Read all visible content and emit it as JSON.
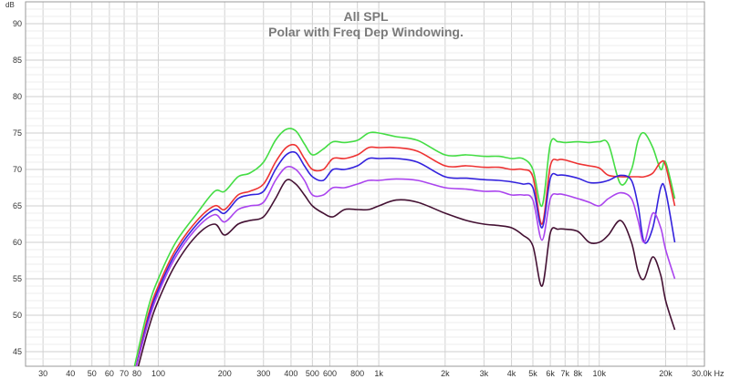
{
  "chart_data": {
    "type": "line",
    "title": "All SPL",
    "subtitle": "Polar with Freq Dep Windowing.",
    "ylabel": "dB",
    "xunit": "Hz",
    "xscale": "log",
    "xlim": [
      25,
      30000
    ],
    "ylim": [
      43,
      93
    ],
    "grid": true,
    "legend": "none",
    "x_ticks": [
      {
        "value": 30,
        "label": "30"
      },
      {
        "value": 40,
        "label": "40"
      },
      {
        "value": 50,
        "label": "50"
      },
      {
        "value": 60,
        "label": "60"
      },
      {
        "value": 70,
        "label": "70"
      },
      {
        "value": 80,
        "label": "80"
      },
      {
        "value": 100,
        "label": "100"
      },
      {
        "value": 200,
        "label": "200"
      },
      {
        "value": 300,
        "label": "300"
      },
      {
        "value": 400,
        "label": "400"
      },
      {
        "value": 500,
        "label": "500"
      },
      {
        "value": 600,
        "label": "600"
      },
      {
        "value": 800,
        "label": "800"
      },
      {
        "value": 1000,
        "label": "1k"
      },
      {
        "value": 2000,
        "label": "2k"
      },
      {
        "value": 3000,
        "label": "3k"
      },
      {
        "value": 4000,
        "label": "4k"
      },
      {
        "value": 5000,
        "label": "5k"
      },
      {
        "value": 6000,
        "label": "6k"
      },
      {
        "value": 7000,
        "label": "7k"
      },
      {
        "value": 8000,
        "label": "8k"
      },
      {
        "value": 10000,
        "label": "10k"
      },
      {
        "value": 20000,
        "label": "20k"
      },
      {
        "value": 30000,
        "label": "30.0k Hz"
      }
    ],
    "y_ticks": [
      45,
      50,
      55,
      60,
      65,
      70,
      75,
      80,
      85,
      90
    ],
    "x": [
      78,
      90,
      100,
      120,
      150,
      180,
      200,
      230,
      260,
      300,
      340,
      380,
      420,
      460,
      500,
      560,
      620,
      700,
      800,
      900,
      1000,
      1200,
      1500,
      2000,
      2500,
      3000,
      3500,
      4000,
      4500,
      5000,
      5500,
      6000,
      6500,
      7000,
      8000,
      9000,
      10000,
      11000,
      12500,
      14000,
      15000,
      16000,
      17500,
      19000,
      20000,
      22000
    ],
    "series": [
      {
        "color": "#44dd44",
        "values": [
          43,
          51,
          55,
          60,
          64,
          67,
          67,
          69,
          69.5,
          71,
          74,
          75.5,
          75.3,
          73.5,
          72,
          72.8,
          73.8,
          73.7,
          74,
          75,
          75,
          74.5,
          74,
          72,
          72,
          71.8,
          71.8,
          71.5,
          71.5,
          70,
          65,
          73.5,
          73.8,
          73.7,
          73.8,
          73.7,
          73.8,
          73.5,
          68,
          70,
          74,
          75,
          73,
          70,
          71,
          66
        ]
      },
      {
        "color": "#ee3333",
        "values": [
          42,
          50,
          54,
          59,
          63,
          65,
          64.5,
          66.5,
          67,
          68,
          71,
          73,
          73.3,
          71.5,
          70,
          70,
          71.5,
          71.5,
          72,
          73,
          73,
          73,
          72.5,
          70.5,
          70.5,
          70.3,
          70.3,
          70,
          70,
          69,
          62.5,
          70.5,
          71.3,
          71.3,
          70.8,
          70.5,
          70.2,
          69.2,
          69,
          69,
          69,
          69,
          69.5,
          71,
          70.5,
          65
        ]
      },
      {
        "color": "#3322dd",
        "values": [
          42,
          49.5,
          53.5,
          58.5,
          62.5,
          64.5,
          64,
          66,
          66.5,
          67,
          70,
          72,
          72.3,
          70.5,
          69,
          68.5,
          70,
          70,
          70.5,
          71.5,
          71.5,
          71.5,
          71,
          69,
          68.8,
          68.6,
          68.5,
          68.3,
          68,
          67.5,
          62,
          68.8,
          69.2,
          69.2,
          68.8,
          68.2,
          68.2,
          68.5,
          69.2,
          68.5,
          65,
          60,
          62,
          67.5,
          67,
          60
        ]
      },
      {
        "color": "#aa44ee",
        "values": [
          42,
          49,
          53,
          58,
          62,
          63.8,
          62.8,
          64.5,
          65,
          65.5,
          68.5,
          70.3,
          70,
          68.5,
          66.5,
          66.5,
          67.5,
          67.5,
          68,
          68.5,
          68.5,
          68.7,
          68.5,
          67.5,
          67.3,
          67,
          67,
          66.5,
          66.5,
          65.8,
          60.3,
          66,
          66.6,
          66.5,
          66,
          65.5,
          65,
          66,
          66.8,
          66,
          63,
          60,
          64,
          62,
          59,
          55
        ]
      },
      {
        "color": "#441133",
        "values": [
          41,
          48,
          52,
          57,
          61,
          62.5,
          61,
          62.5,
          63,
          63.5,
          66,
          68.5,
          68,
          66.5,
          65,
          64,
          63.5,
          64.5,
          64.5,
          64.5,
          65,
          65.8,
          65.5,
          64,
          63,
          62.5,
          62.3,
          62,
          61,
          59.5,
          54,
          61.3,
          61.8,
          61.8,
          61.5,
          60,
          60,
          61,
          63,
          60,
          56,
          55,
          58,
          55.5,
          52,
          48
        ]
      }
    ]
  }
}
